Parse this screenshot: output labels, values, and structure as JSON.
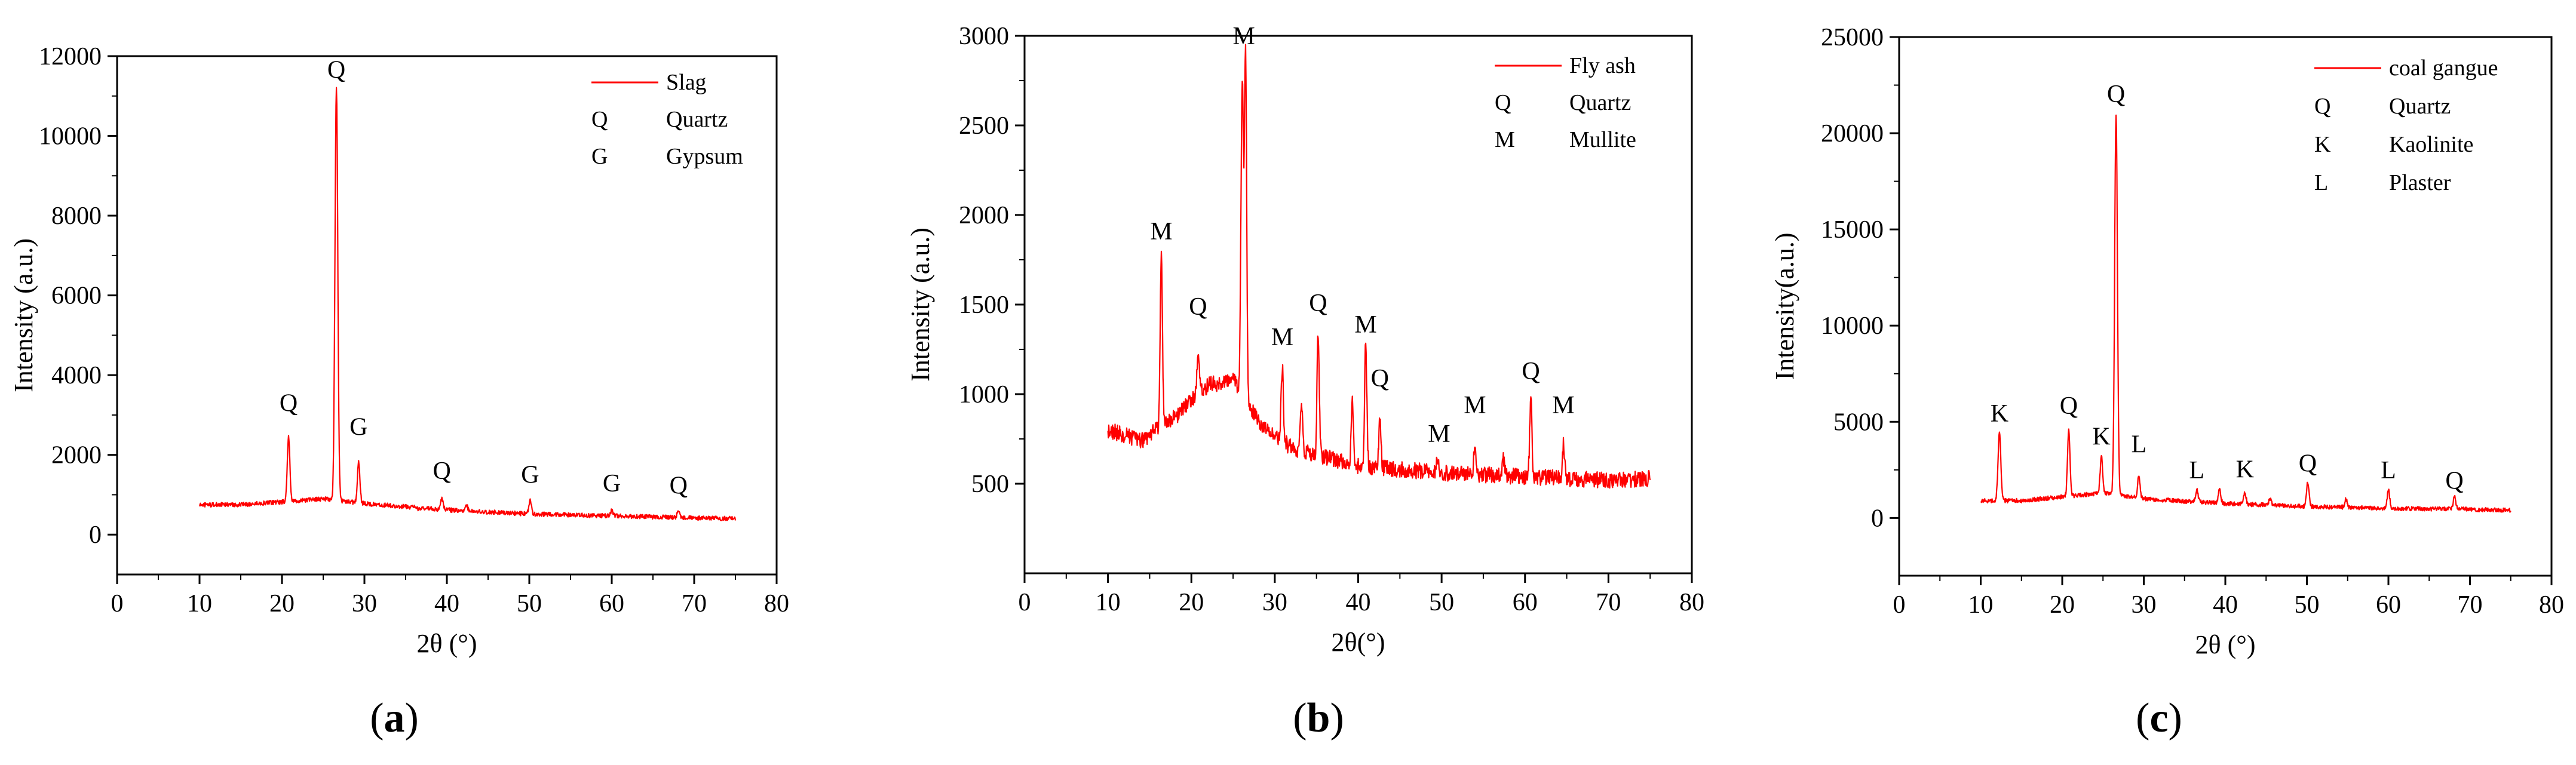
{
  "chart_data": [
    {
      "type": "line",
      "panel_caption": "a",
      "xlabel": "2θ (°)",
      "ylabel": "Intensity (a.u.)",
      "xlim": [
        0,
        80
      ],
      "ylim": [
        -1000,
        12000
      ],
      "x_ticks": [
        0,
        10,
        20,
        30,
        40,
        50,
        60,
        70,
        80
      ],
      "y_ticks": [
        0,
        2000,
        4000,
        6000,
        8000,
        10000,
        12000
      ],
      "x_tick_labels": [
        "0",
        "10",
        "20",
        "30",
        "40",
        "50",
        "60",
        "70",
        "80"
      ],
      "y_tick_labels": [
        "0",
        "2000",
        "4000",
        "6000",
        "8000",
        "10000",
        "12000"
      ],
      "color": "#ff0000",
      "series": [
        {
          "name": "Slag",
          "baseline": [
            [
              10,
              750
            ],
            [
              15,
              750
            ],
            [
              20,
              820
            ],
            [
              25,
              900
            ],
            [
              30,
              780
            ],
            [
              40,
              620
            ],
            [
              50,
              520
            ],
            [
              60,
              470
            ],
            [
              70,
              420
            ],
            [
              75,
              400
            ]
          ],
          "peaks": [
            {
              "x": 20.8,
              "y": 2500,
              "w": 0.15
            },
            {
              "x": 26.6,
              "y": 11200,
              "w": 0.17
            },
            {
              "x": 29.3,
              "y": 1850,
              "w": 0.15
            },
            {
              "x": 36.5,
              "y": 650,
              "w": 0.15
            },
            {
              "x": 39.4,
              "y": 900,
              "w": 0.15
            },
            {
              "x": 42.4,
              "y": 720,
              "w": 0.15
            },
            {
              "x": 50.1,
              "y": 850,
              "w": 0.15
            },
            {
              "x": 60.0,
              "y": 600,
              "w": 0.15
            },
            {
              "x": 68.1,
              "y": 620,
              "w": 0.15
            }
          ],
          "noise": 55
        }
      ],
      "peak_labels": [
        {
          "text": "Q",
          "x": 20.8,
          "y": 2950
        },
        {
          "text": "Q",
          "x": 26.6,
          "y": 11300
        },
        {
          "text": "G",
          "x": 29.3,
          "y": 2350
        },
        {
          "text": "Q",
          "x": 39.4,
          "y": 1250
        },
        {
          "text": "G",
          "x": 50.1,
          "y": 1150
        },
        {
          "text": "G",
          "x": 60.0,
          "y": 930
        },
        {
          "text": "Q",
          "x": 68.1,
          "y": 880
        }
      ],
      "legend": [
        {
          "symbol": "line",
          "label": "Slag"
        },
        {
          "symbol": "Q",
          "label": "Quartz"
        },
        {
          "symbol": "G",
          "label": "Gypsum"
        }
      ]
    },
    {
      "type": "line",
      "panel_caption": "b",
      "xlabel": "2θ(°)",
      "ylabel": "Intensity (a.u.)",
      "xlim": [
        0,
        80
      ],
      "ylim": [
        0,
        3000
      ],
      "x_ticks": [
        0,
        10,
        20,
        30,
        40,
        50,
        60,
        70,
        80
      ],
      "y_ticks": [
        500,
        1000,
        1500,
        2000,
        2500,
        3000
      ],
      "x_tick_labels": [
        "0",
        "10",
        "20",
        "30",
        "40",
        "50",
        "60",
        "70",
        "80"
      ],
      "y_tick_labels": [
        "500",
        "1000",
        "1500",
        "2000",
        "2500",
        "3000"
      ],
      "color": "#ff0000",
      "series": [
        {
          "name": "Fly ash",
          "baseline": [
            [
              10,
              800
            ],
            [
              14,
              740
            ],
            [
              18,
              870
            ],
            [
              22,
              1050
            ],
            [
              25,
              1080
            ],
            [
              28,
              850
            ],
            [
              32,
              700
            ],
            [
              40,
              600
            ],
            [
              50,
              560
            ],
            [
              60,
              540
            ],
            [
              70,
              520
            ],
            [
              75,
              530
            ]
          ],
          "peaks": [
            {
              "x": 16.4,
              "y": 1800,
              "w": 0.13
            },
            {
              "x": 20.8,
              "y": 1250,
              "w": 0.13
            },
            {
              "x": 26.1,
              "y": 2750,
              "w": 0.15
            },
            {
              "x": 26.5,
              "y": 2900,
              "w": 0.13
            },
            {
              "x": 30.9,
              "y": 1150,
              "w": 0.13
            },
            {
              "x": 33.2,
              "y": 950,
              "w": 0.13
            },
            {
              "x": 35.2,
              "y": 1350,
              "w": 0.13
            },
            {
              "x": 39.3,
              "y": 950,
              "w": 0.13
            },
            {
              "x": 40.9,
              "y": 1280,
              "w": 0.13
            },
            {
              "x": 42.6,
              "y": 870,
              "w": 0.13
            },
            {
              "x": 49.5,
              "y": 620,
              "w": 0.13
            },
            {
              "x": 54.0,
              "y": 720,
              "w": 0.13
            },
            {
              "x": 57.4,
              "y": 650,
              "w": 0.13
            },
            {
              "x": 60.7,
              "y": 1000,
              "w": 0.13
            },
            {
              "x": 64.6,
              "y": 720,
              "w": 0.13
            }
          ],
          "noise": 45
        }
      ],
      "peak_labels": [
        {
          "text": "M",
          "x": 16.4,
          "y": 1830
        },
        {
          "text": "Q",
          "x": 20.8,
          "y": 1410
        },
        {
          "text": "M",
          "x": 26.3,
          "y": 2920
        },
        {
          "text": "M",
          "x": 30.9,
          "y": 1240
        },
        {
          "text": "Q",
          "x": 35.2,
          "y": 1430
        },
        {
          "text": "M",
          "x": 40.9,
          "y": 1310
        },
        {
          "text": "Q",
          "x": 42.6,
          "y": 1010
        },
        {
          "text": "M",
          "x": 49.7,
          "y": 700
        },
        {
          "text": "M",
          "x": 54.0,
          "y": 860
        },
        {
          "text": "Q",
          "x": 60.7,
          "y": 1050
        },
        {
          "text": "M",
          "x": 64.6,
          "y": 860
        }
      ],
      "legend": [
        {
          "symbol": "line",
          "label": "Fly ash"
        },
        {
          "symbol": "Q",
          "label": "Quartz"
        },
        {
          "symbol": "M",
          "label": "Mullite"
        }
      ]
    },
    {
      "type": "line",
      "panel_caption": "c",
      "xlabel": "2θ (°)",
      "ylabel": "Intensity(a.u.)",
      "xlim": [
        0,
        80
      ],
      "ylim": [
        -3000,
        25000
      ],
      "x_ticks": [
        0,
        10,
        20,
        30,
        40,
        50,
        60,
        70,
        80
      ],
      "y_ticks": [
        0,
        5000,
        10000,
        15000,
        20000,
        25000
      ],
      "x_tick_labels": [
        "0",
        "10",
        "20",
        "30",
        "40",
        "50",
        "60",
        "70",
        "80"
      ],
      "y_tick_labels": [
        "0",
        "5000",
        "10000",
        "15000",
        "20000",
        "25000"
      ],
      "color": "#ff0000",
      "series": [
        {
          "name": "coal gangue",
          "baseline": [
            [
              10,
              900
            ],
            [
              15,
              900
            ],
            [
              20,
              1100
            ],
            [
              25,
              1300
            ],
            [
              30,
              1000
            ],
            [
              40,
              750
            ],
            [
              50,
              600
            ],
            [
              60,
              500
            ],
            [
              70,
              450
            ],
            [
              75,
              400
            ]
          ],
          "peaks": [
            {
              "x": 12.3,
              "y": 4400,
              "w": 0.17
            },
            {
              "x": 20.8,
              "y": 4600,
              "w": 0.15
            },
            {
              "x": 24.8,
              "y": 3200,
              "w": 0.15
            },
            {
              "x": 26.6,
              "y": 21000,
              "w": 0.17
            },
            {
              "x": 29.4,
              "y": 2200,
              "w": 0.15
            },
            {
              "x": 36.5,
              "y": 1450,
              "w": 0.15
            },
            {
              "x": 39.3,
              "y": 1500,
              "w": 0.15
            },
            {
              "x": 42.4,
              "y": 1300,
              "w": 0.15
            },
            {
              "x": 45.5,
              "y": 1000,
              "w": 0.15
            },
            {
              "x": 50.1,
              "y": 1900,
              "w": 0.15
            },
            {
              "x": 54.8,
              "y": 1000,
              "w": 0.15
            },
            {
              "x": 60.0,
              "y": 1500,
              "w": 0.15
            },
            {
              "x": 68.1,
              "y": 1100,
              "w": 0.15
            }
          ],
          "noise": 110
        }
      ],
      "peak_labels": [
        {
          "text": "K",
          "x": 12.3,
          "y": 4700
        },
        {
          "text": "Q",
          "x": 20.8,
          "y": 5100
        },
        {
          "text": "K",
          "x": 24.8,
          "y": 3500
        },
        {
          "text": "Q",
          "x": 26.6,
          "y": 21300
        },
        {
          "text": "L",
          "x": 29.4,
          "y": 3100
        },
        {
          "text": "L",
          "x": 36.5,
          "y": 1750
        },
        {
          "text": "K",
          "x": 42.4,
          "y": 1800
        },
        {
          "text": "Q",
          "x": 50.1,
          "y": 2100
        },
        {
          "text": "L",
          "x": 60.0,
          "y": 1750
        },
        {
          "text": "Q",
          "x": 68.1,
          "y": 1200
        }
      ],
      "legend": [
        {
          "symbol": "line",
          "label": "coal gangue"
        },
        {
          "symbol": "Q",
          "label": "Quartz"
        },
        {
          "symbol": "K",
          "label": "Kaolinite"
        },
        {
          "symbol": "L",
          "label": "Plaster"
        }
      ]
    }
  ]
}
